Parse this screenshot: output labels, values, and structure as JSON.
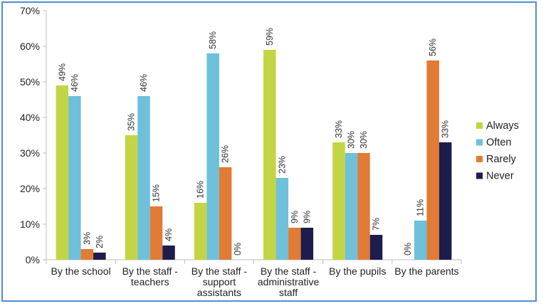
{
  "chart_data": {
    "type": "bar",
    "title": "",
    "xlabel": "",
    "ylabel": "",
    "ylim": [
      0,
      70
    ],
    "yticks": [
      0,
      10,
      20,
      30,
      40,
      50,
      60,
      70
    ],
    "ytick_labels": [
      "0%",
      "10%",
      "20%",
      "30%",
      "40%",
      "50%",
      "60%",
      "70%"
    ],
    "grid": false,
    "legend_position": "right",
    "categories": [
      [
        "By the school"
      ],
      [
        "By the staff -",
        "teachers"
      ],
      [
        "By the staff -",
        "support",
        "assistants"
      ],
      [
        "By the staff -",
        "administrative",
        "staff"
      ],
      [
        "By the pupils"
      ],
      [
        "By the parents"
      ]
    ],
    "series": [
      {
        "name": "Always",
        "color": "#c3d544",
        "values": [
          49,
          35,
          16,
          59,
          33,
          0
        ],
        "labels": [
          "49%",
          "35%",
          "16%",
          "59%",
          "33%",
          "0%"
        ]
      },
      {
        "name": "Often",
        "color": "#6ec0db",
        "values": [
          46,
          46,
          58,
          23,
          30,
          11
        ],
        "labels": [
          "46%",
          "46%",
          "58%",
          "23%",
          "30%",
          "11%"
        ]
      },
      {
        "name": "Rarely",
        "color": "#e07c35",
        "values": [
          3,
          15,
          26,
          9,
          30,
          56
        ],
        "labels": [
          "3%",
          "15%",
          "26%",
          "9%",
          "30%",
          "56%"
        ]
      },
      {
        "name": "Never",
        "color": "#1e1c4e",
        "values": [
          2,
          4,
          0,
          9,
          7,
          33
        ],
        "labels": [
          "2%",
          "4%",
          "0%",
          "9%",
          "7%",
          "33%"
        ]
      }
    ]
  }
}
